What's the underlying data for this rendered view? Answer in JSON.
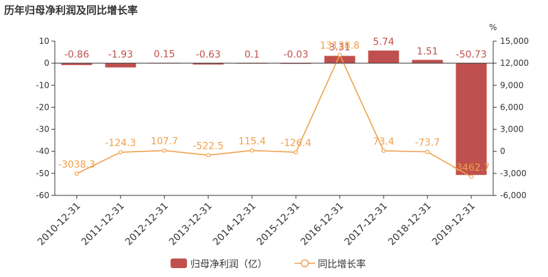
{
  "title": "历年归母净利润及同比增长率",
  "right_unit": "%",
  "colors": {
    "bar": "#c0504d",
    "line": "#f0a04b",
    "axis_text": "#333333",
    "grid": "#e6e6e6"
  },
  "legend": [
    {
      "label": "归母净利润（亿）",
      "icon": "bar-swatch"
    },
    {
      "label": "同比增长率",
      "icon": "line-circle-marker"
    }
  ],
  "chart_data": {
    "type": "bar+line",
    "categories": [
      "2010-12-31",
      "2011-12-31",
      "2012-12-31",
      "2013-12-31",
      "2014-12-31",
      "2015-12-31",
      "2016-12-31",
      "2017-12-31",
      "2018-12-31",
      "2019-12-31"
    ],
    "series": [
      {
        "name": "归母净利润（亿）",
        "type": "bar",
        "axis": "left",
        "values": [
          -0.86,
          -1.93,
          0.15,
          -0.63,
          0.1,
          -0.03,
          3.31,
          5.74,
          1.51,
          -50.73
        ],
        "labels": [
          "-0.86",
          "-1.93",
          "0.15",
          "-0.63",
          "0.1",
          "-0.03",
          "3.31",
          "5.74",
          "1.51",
          "-50.73"
        ]
      },
      {
        "name": "同比增长率",
        "type": "line",
        "axis": "right",
        "values": [
          -3038.3,
          -124.3,
          107.7,
          -522.5,
          115.4,
          -126.4,
          13138.8,
          73.4,
          -73.7,
          -3462.7
        ],
        "labels": [
          "-3038.3",
          "-124.3",
          "107.7",
          "-522.5",
          "115.4",
          "-126.4",
          "13138.8",
          "73.4",
          "-73.7",
          "-3462.7"
        ]
      }
    ],
    "left_axis": {
      "min": -60,
      "max": 10,
      "ticks": [
        10,
        0,
        -10,
        -20,
        -30,
        -40,
        -50,
        -60
      ],
      "tick_labels": [
        "10",
        "0",
        "-10",
        "-20",
        "-30",
        "-40",
        "-50",
        "-60"
      ]
    },
    "right_axis": {
      "min": -6000,
      "max": 15000,
      "unit": "%",
      "ticks": [
        15000,
        12000,
        9000,
        6000,
        3000,
        0,
        -3000,
        -6000
      ],
      "tick_labels": [
        "15,000",
        "12,000",
        "9,000",
        "6,000",
        "3,000",
        "0",
        "-3,000",
        "-6,000"
      ]
    },
    "grid": false,
    "legend_position": "bottom"
  }
}
